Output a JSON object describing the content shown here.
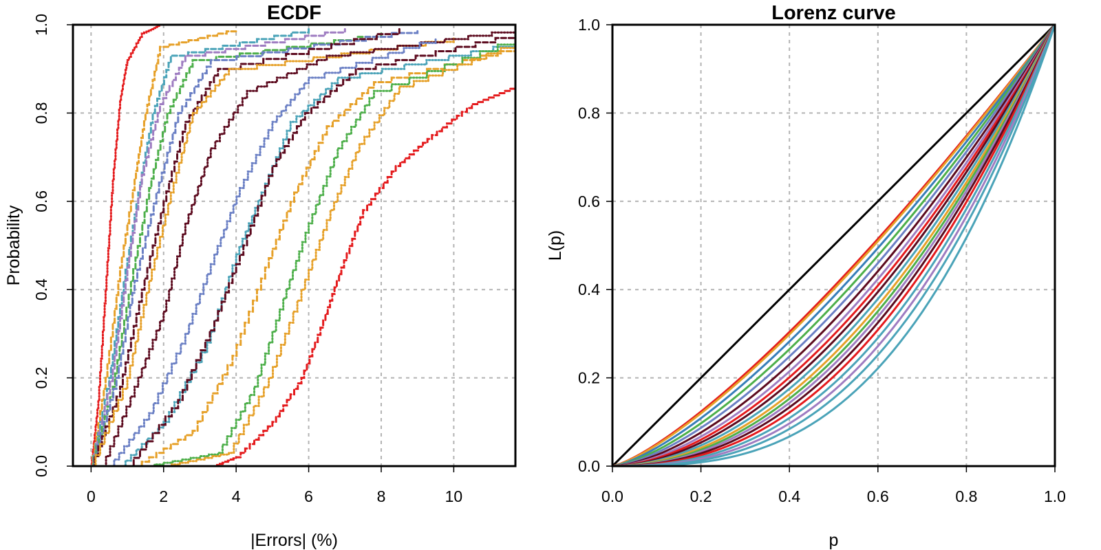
{
  "palette": [
    "#e41a1c",
    "#377eb8",
    "#4daf4a",
    "#984ea3",
    "#ff7f00",
    "#e6a028",
    "#a65628",
    "#f781bf",
    "#1b9e77",
    "#4aa3b8",
    "#5c0a1e",
    "#6a7fc4",
    "#9e7cc1",
    "#d95f02"
  ],
  "chart_data": [
    {
      "type": "line",
      "title": "ECDF",
      "xlabel": "|Errors| (%)",
      "ylabel": "Probability",
      "xlim": [
        -0.5,
        11.7
      ],
      "ylim": [
        0,
        1
      ],
      "xticks": [
        0,
        2,
        4,
        6,
        8,
        10
      ],
      "xtick_labels": [
        "0",
        "2",
        "4",
        "6",
        "8",
        "10"
      ],
      "yticks": [
        0,
        0.2,
        0.4,
        0.6,
        0.8,
        1
      ],
      "ytick_labels": [
        "0.0",
        "0.2",
        "0.4",
        "0.6",
        "0.8",
        "1.0"
      ],
      "grid": true,
      "series": [
        {
          "color": "#e41a1c",
          "line_style": "dotted",
          "points": [
            [
              0,
              0
            ],
            [
              0.2,
              0.15
            ],
            [
              0.4,
              0.4
            ],
            [
              0.6,
              0.65
            ],
            [
              0.8,
              0.83
            ],
            [
              1.0,
              0.92
            ],
            [
              1.4,
              0.98
            ],
            [
              1.9,
              1.0
            ]
          ]
        },
        {
          "color": "#e41a1c",
          "line_style": "dashed",
          "points": [
            [
              3.4,
              0
            ],
            [
              4.0,
              0.02
            ],
            [
              5.0,
              0.1
            ],
            [
              5.8,
              0.2
            ],
            [
              6.4,
              0.33
            ],
            [
              6.9,
              0.45
            ],
            [
              7.5,
              0.58
            ],
            [
              8.4,
              0.68
            ],
            [
              9.4,
              0.75
            ],
            [
              10.5,
              0.82
            ],
            [
              11.7,
              0.86
            ]
          ]
        },
        {
          "color": "#e6a028",
          "line_style": "dashed",
          "points": [
            [
              0,
              0
            ],
            [
              0.4,
              0.2
            ],
            [
              0.8,
              0.45
            ],
            [
              1.2,
              0.65
            ],
            [
              1.5,
              0.8
            ],
            [
              1.9,
              0.95
            ],
            [
              4,
              0.99
            ]
          ]
        },
        {
          "color": "#4aa3b8",
          "line_style": "dashed",
          "points": [
            [
              0,
              0
            ],
            [
              0.5,
              0.2
            ],
            [
              0.9,
              0.42
            ],
            [
              1.3,
              0.62
            ],
            [
              1.7,
              0.8
            ],
            [
              2.2,
              0.93
            ],
            [
              6,
              0.99
            ]
          ]
        },
        {
          "color": "#9e7cc1",
          "line_style": "dashed",
          "points": [
            [
              0,
              0
            ],
            [
              0.6,
              0.22
            ],
            [
              1.0,
              0.45
            ],
            [
              1.4,
              0.66
            ],
            [
              1.9,
              0.82
            ],
            [
              2.6,
              0.93
            ],
            [
              7,
              0.99
            ]
          ]
        },
        {
          "color": "#4daf4a",
          "line_style": "dashed",
          "points": [
            [
              0,
              0
            ],
            [
              0.6,
              0.18
            ],
            [
              1.1,
              0.42
            ],
            [
              1.6,
              0.63
            ],
            [
              2.1,
              0.8
            ],
            [
              2.8,
              0.92
            ],
            [
              8,
              0.98
            ]
          ]
        },
        {
          "color": "#6a7fc4",
          "line_style": "dashed",
          "points": [
            [
              0,
              0
            ],
            [
              0.7,
              0.2
            ],
            [
              1.2,
              0.42
            ],
            [
              1.8,
              0.62
            ],
            [
              2.4,
              0.8
            ],
            [
              3.3,
              0.92
            ],
            [
              9,
              0.99
            ]
          ]
        },
        {
          "color": "#5c0a1e",
          "line_style": "dashed",
          "points": [
            [
              0,
              0
            ],
            [
              0.8,
              0.18
            ],
            [
              1.4,
              0.4
            ],
            [
              2.0,
              0.6
            ],
            [
              2.6,
              0.78
            ],
            [
              3.5,
              0.9
            ],
            [
              8.5,
              0.99
            ]
          ]
        },
        {
          "color": "#e6a028",
          "line_style": "dotted",
          "points": [
            [
              0,
              0
            ],
            [
              1.0,
              0.2
            ],
            [
              1.6,
              0.42
            ],
            [
              2.2,
              0.62
            ],
            [
              2.8,
              0.8
            ],
            [
              3.8,
              0.9
            ],
            [
              10,
              0.97
            ]
          ]
        },
        {
          "color": "#5c0a1e",
          "line_style": "dotted",
          "points": [
            [
              0.3,
              0
            ],
            [
              1.2,
              0.18
            ],
            [
              2.0,
              0.35
            ],
            [
              2.6,
              0.55
            ],
            [
              3.3,
              0.72
            ],
            [
              4.3,
              0.85
            ],
            [
              6.5,
              0.93
            ],
            [
              11.7,
              0.99
            ]
          ]
        },
        {
          "color": "#6a7fc4",
          "line_style": "dotted",
          "points": [
            [
              0.5,
              0
            ],
            [
              1.6,
              0.12
            ],
            [
              2.6,
              0.3
            ],
            [
              3.4,
              0.48
            ],
            [
              4.1,
              0.63
            ],
            [
              5.0,
              0.78
            ],
            [
              6.0,
              0.88
            ],
            [
              9.5,
              0.97
            ]
          ]
        },
        {
          "color": "#4aa3b8",
          "line_style": "dotted",
          "points": [
            [
              0.8,
              0
            ],
            [
              2.0,
              0.1
            ],
            [
              3.2,
              0.28
            ],
            [
              4.0,
              0.48
            ],
            [
              4.7,
              0.62
            ],
            [
              5.5,
              0.78
            ],
            [
              6.8,
              0.88
            ],
            [
              11.7,
              0.96
            ]
          ]
        },
        {
          "color": "#5c0a1e",
          "line_style": "dashed",
          "points": [
            [
              1.0,
              0
            ],
            [
              2.4,
              0.15
            ],
            [
              3.4,
              0.33
            ],
            [
              4.2,
              0.5
            ],
            [
              5.0,
              0.68
            ],
            [
              5.9,
              0.8
            ],
            [
              7.3,
              0.9
            ],
            [
              11.7,
              0.98
            ]
          ]
        },
        {
          "color": "#e6a028",
          "line_style": "dashed",
          "points": [
            [
              1.2,
              0
            ],
            [
              2.8,
              0.08
            ],
            [
              3.9,
              0.25
            ],
            [
              4.8,
              0.45
            ],
            [
              5.6,
              0.62
            ],
            [
              6.5,
              0.77
            ],
            [
              7.8,
              0.87
            ],
            [
              11.7,
              0.95
            ]
          ]
        },
        {
          "color": "#4daf4a",
          "line_style": "dotted",
          "points": [
            [
              1.5,
              0
            ],
            [
              3.5,
              0.03
            ],
            [
              4.5,
              0.18
            ],
            [
              5.3,
              0.38
            ],
            [
              6.0,
              0.55
            ],
            [
              6.8,
              0.72
            ],
            [
              7.8,
              0.85
            ],
            [
              11.7,
              0.97
            ]
          ]
        },
        {
          "color": "#e6a028",
          "line_style": "dotted",
          "points": [
            [
              2.0,
              0
            ],
            [
              3.8,
              0.03
            ],
            [
              4.9,
              0.2
            ],
            [
              5.8,
              0.4
            ],
            [
              6.6,
              0.58
            ],
            [
              7.4,
              0.73
            ],
            [
              8.5,
              0.86
            ],
            [
              11.7,
              0.96
            ]
          ]
        }
      ]
    },
    {
      "type": "line",
      "title": "Lorenz curve",
      "xlabel": "p",
      "ylabel": "L(p)",
      "xlim": [
        0,
        1
      ],
      "ylim": [
        0,
        1
      ],
      "xticks": [
        0,
        0.2,
        0.4,
        0.6,
        0.8,
        1
      ],
      "xtick_labels": [
        "0.0",
        "0.2",
        "0.4",
        "0.6",
        "0.8",
        "1.0"
      ],
      "yticks": [
        0,
        0.2,
        0.4,
        0.6,
        0.8,
        1
      ],
      "ytick_labels": [
        "0.0",
        "0.2",
        "0.4",
        "0.6",
        "0.8",
        "1.0"
      ],
      "grid": true,
      "equality_line": {
        "color": "#000000",
        "points": [
          [
            0,
            0
          ],
          [
            1,
            1
          ]
        ]
      },
      "curve_model": "L(p) = p^k",
      "series": [
        {
          "color": "#e41a1c",
          "k": 1.3
        },
        {
          "color": "#e6a028",
          "k": 1.32
        },
        {
          "color": "#377eb8",
          "k": 1.38
        },
        {
          "color": "#4daf4a",
          "k": 1.45
        },
        {
          "color": "#6a7fc4",
          "k": 1.52
        },
        {
          "color": "#5c0a1e",
          "k": 1.6
        },
        {
          "color": "#9e7cc1",
          "k": 1.68
        },
        {
          "color": "#e41a1c",
          "k": 1.75
        },
        {
          "color": "#5c0a1e",
          "k": 1.82
        },
        {
          "color": "#4aa3b8",
          "k": 1.9
        },
        {
          "color": "#e6a028",
          "k": 1.98
        },
        {
          "color": "#4daf4a",
          "k": 2.05
        },
        {
          "color": "#9e7cc1",
          "k": 2.12
        },
        {
          "color": "#5c0a1e",
          "k": 2.2
        },
        {
          "color": "#e41a1c",
          "k": 2.3
        },
        {
          "color": "#4aa3b8",
          "k": 2.42
        },
        {
          "color": "#9e7cc1",
          "k": 2.55
        },
        {
          "color": "#4aa3b8",
          "k": 2.7
        },
        {
          "color": "#4aa3b8",
          "k": 2.95
        }
      ]
    }
  ]
}
